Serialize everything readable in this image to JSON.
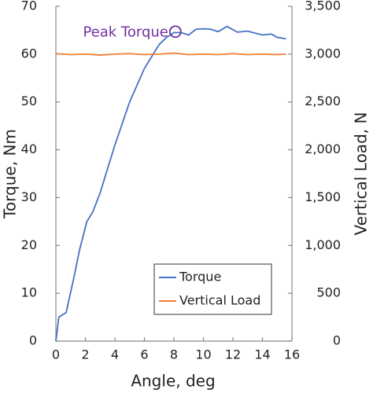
{
  "chart_data": {
    "type": "line",
    "xlabel": "Angle, deg",
    "ylabel": "Torque, Nm",
    "y2label": "Vertical Load, N",
    "xlim": [
      0,
      16
    ],
    "xticks": [
      0,
      2,
      4,
      6,
      8,
      10,
      12,
      14,
      16
    ],
    "ylim": [
      0,
      70
    ],
    "yticks": [
      0,
      10,
      20,
      30,
      40,
      50,
      60,
      70
    ],
    "y2lim": [
      0,
      3500
    ],
    "y2ticks": [
      0,
      500,
      {
        "value": 1000,
        "label": "1,000"
      },
      {
        "value": 1500,
        "label": "1,500"
      },
      {
        "value": 2000,
        "label": "2,000"
      },
      {
        "value": 2500,
        "label": "2,500"
      },
      {
        "value": 3000,
        "label": "3,000"
      },
      {
        "value": 3500,
        "label": "3,500"
      }
    ],
    "legend": "lower right",
    "series": [
      {
        "name": "Torque",
        "color": "#4472c4",
        "x": [
          0,
          0.2,
          0.7,
          1.2,
          1.6,
          2.1,
          2.5,
          3,
          4,
          5,
          6,
          7,
          7.5,
          8,
          8.5,
          9,
          9.5,
          10,
          10.5,
          11,
          11.6,
          12.3,
          13,
          13.5,
          14,
          14.6,
          15,
          15.6
        ],
        "values": [
          0,
          5,
          6,
          13,
          19,
          25,
          27,
          31,
          41,
          50,
          57,
          62,
          63.5,
          64.5,
          64.5,
          64,
          65.2,
          65.3,
          65.2,
          64.7,
          65.8,
          64.6,
          64.8,
          64.4,
          64,
          64.2,
          63.5,
          63.2
        ]
      },
      {
        "name": "Vertical Load",
        "color": "#ed7d31",
        "axis": "y2",
        "x": [
          0,
          1,
          2,
          3,
          4,
          5,
          6,
          7,
          8,
          9,
          10,
          11,
          12,
          13,
          14,
          15,
          15.6
        ],
        "values": [
          3005,
          2995,
          3000,
          2990,
          3000,
          3005,
          2995,
          3000,
          3010,
          2995,
          3000,
          2995,
          3005,
          2995,
          3000,
          2995,
          3000
        ]
      }
    ],
    "annotations": [
      {
        "text": "Peak Torque",
        "x": 8.1,
        "y": 64.7,
        "color": "#7030a0"
      }
    ]
  }
}
